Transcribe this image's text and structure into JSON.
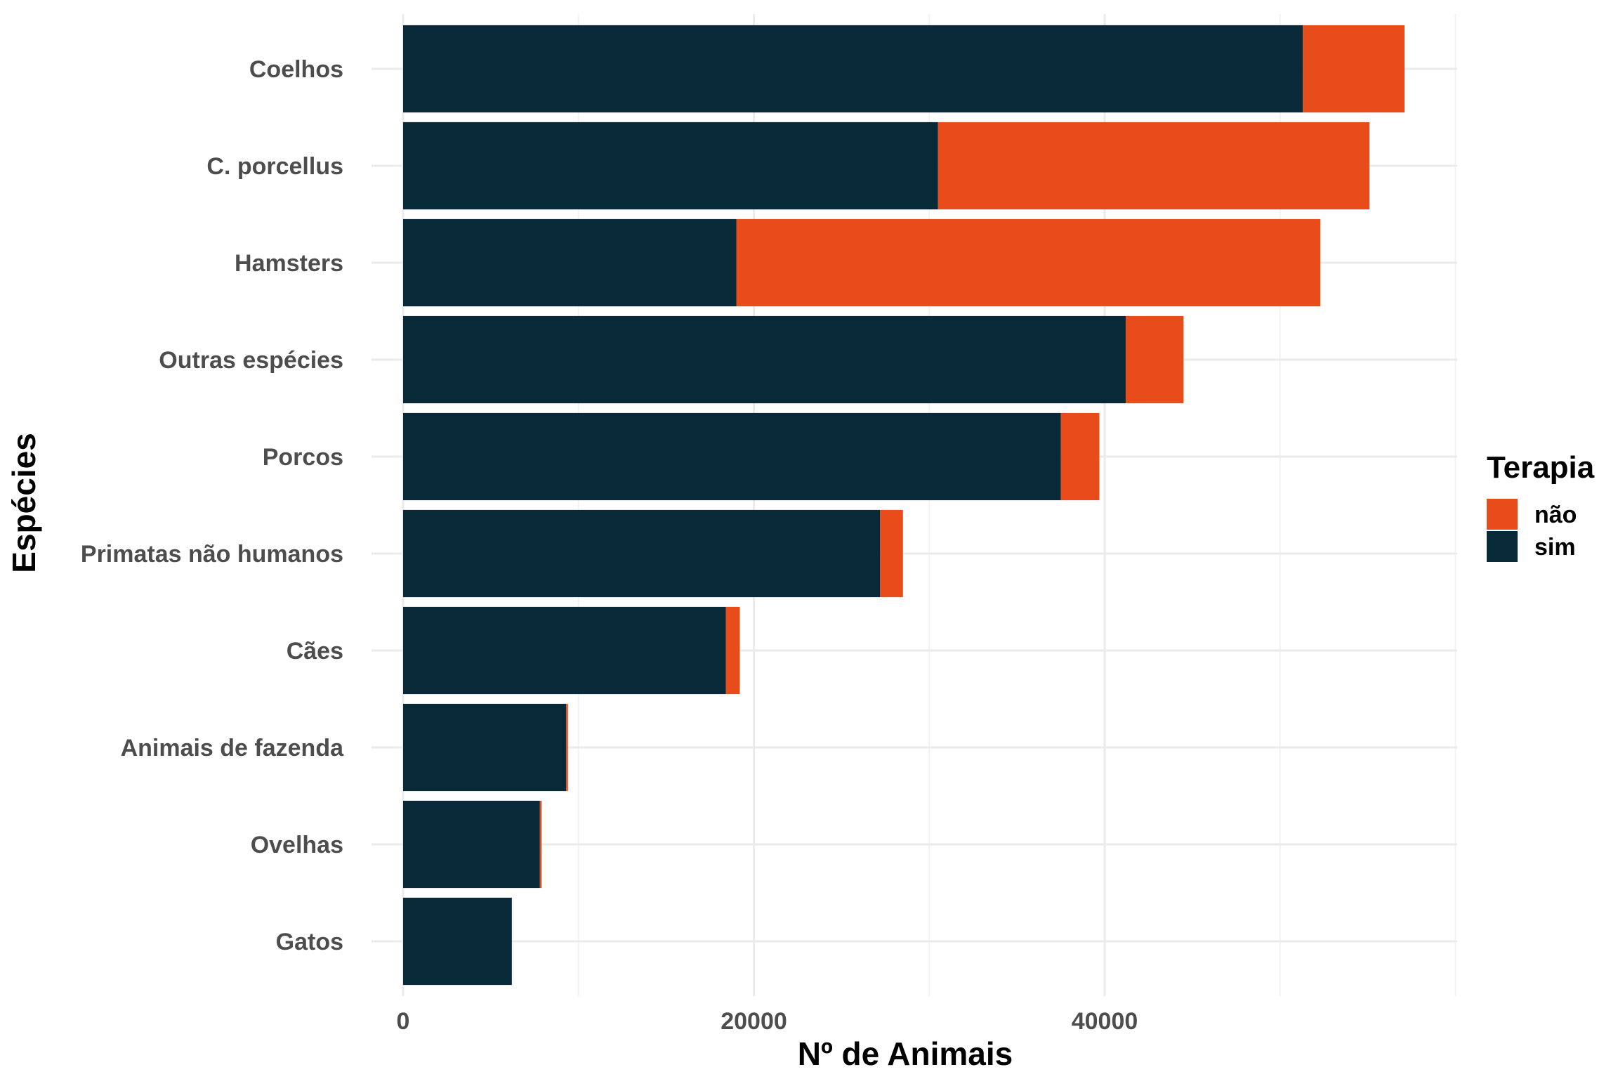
{
  "chart_data": {
    "type": "bar",
    "orientation": "horizontal",
    "stacked": true,
    "categories": [
      "Coelhos",
      "C. porcellus",
      "Hamsters",
      "Outras espécies",
      "Porcos",
      "Primatas não humanos",
      "Cães",
      "Animais de fazenda",
      "Ovelhas",
      "Gatos"
    ],
    "series": [
      {
        "name": "sim",
        "color": "#082a38",
        "values": [
          51300,
          30500,
          19000,
          41200,
          37500,
          27200,
          18400,
          9300,
          7800,
          6200
        ]
      },
      {
        "name": "não",
        "color": "#e84c1b",
        "values": [
          5800,
          24600,
          33300,
          3300,
          2200,
          1300,
          800,
          100,
          100,
          0
        ]
      }
    ],
    "xlabel": "Nº de Animais",
    "ylabel": "Espécies",
    "xlim": [
      0,
      60000
    ],
    "xticks": [
      0,
      20000,
      40000
    ],
    "grid": true,
    "legend": {
      "title": "Terapia",
      "position": "right",
      "items": [
        {
          "label": "não",
          "color": "#e84c1b"
        },
        {
          "label": "sim",
          "color": "#082a38"
        }
      ]
    }
  }
}
